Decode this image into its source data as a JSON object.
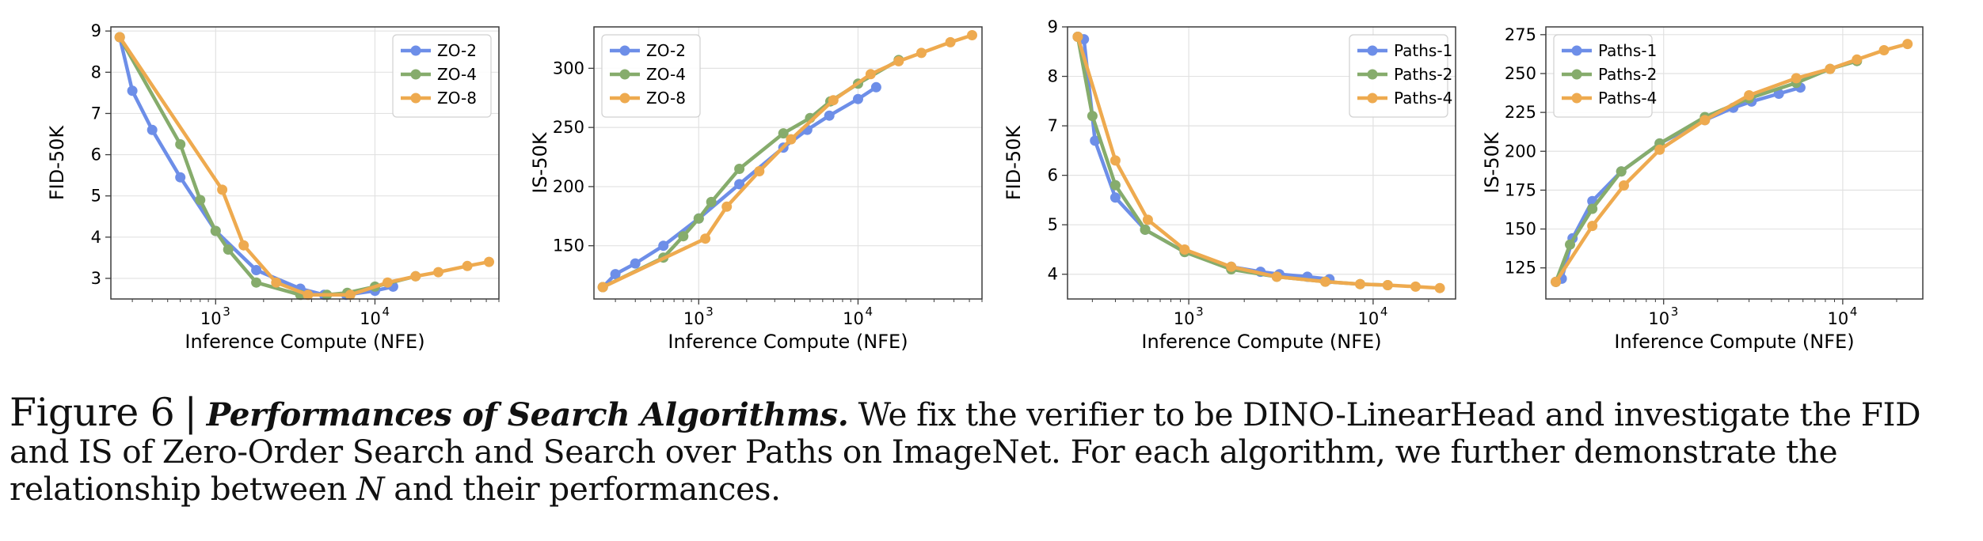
{
  "colors": {
    "series_1": "#6d8ee8",
    "series_2": "#86ac6c",
    "series_3": "#eeaa4f",
    "grid": "#e2e2e2",
    "axis": "#3c3c3c"
  },
  "chart_data": [
    {
      "type": "line",
      "xlabel": "Inference Compute (NFE)",
      "ylabel": "FID-50K",
      "xscale": "log",
      "xlim": [
        220,
        60000
      ],
      "ylim": [
        2.5,
        9.1
      ],
      "yticks": [
        3,
        4,
        5,
        6,
        7,
        8,
        9
      ],
      "xticks": [
        {
          "value": 1000,
          "base": "10",
          "exp": "3"
        },
        {
          "value": 10000,
          "base": "10",
          "exp": "4"
        }
      ],
      "grid": true,
      "legend_position": "top-right",
      "series": [
        {
          "name": "ZO-2",
          "x": [
            250,
            300,
            400,
            600,
            1000,
            1800,
            3400,
            4800,
            6600,
            10000,
            13000
          ],
          "y": [
            8.85,
            7.55,
            6.6,
            5.45,
            4.15,
            3.2,
            2.75,
            2.6,
            2.6,
            2.7,
            2.8
          ]
        },
        {
          "name": "ZO-4",
          "x": [
            250,
            600,
            800,
            1000,
            1200,
            1800,
            3400,
            5000,
            6700,
            10000,
            18000
          ],
          "y": [
            8.85,
            6.25,
            4.9,
            4.15,
            3.7,
            2.9,
            2.6,
            2.6,
            2.65,
            2.8,
            3.05
          ]
        },
        {
          "name": "ZO-8",
          "x": [
            250,
            1100,
            1500,
            2400,
            3800,
            7000,
            12000,
            18000,
            25000,
            38000,
            52000
          ],
          "y": [
            8.85,
            5.15,
            3.8,
            2.9,
            2.6,
            2.6,
            2.9,
            3.05,
            3.15,
            3.3,
            3.4
          ]
        }
      ]
    },
    {
      "type": "line",
      "xlabel": "Inference Compute (NFE)",
      "ylabel": "IS-50K",
      "xscale": "log",
      "xlim": [
        220,
        60000
      ],
      "ylim": [
        105,
        335
      ],
      "yticks": [
        150,
        200,
        250,
        300
      ],
      "xticks": [
        {
          "value": 1000,
          "base": "10",
          "exp": "3"
        },
        {
          "value": 10000,
          "base": "10",
          "exp": "4"
        }
      ],
      "grid": true,
      "legend_position": "top-left",
      "series": [
        {
          "name": "ZO-2",
          "x": [
            250,
            300,
            400,
            600,
            1000,
            1800,
            3400,
            4800,
            6600,
            10000,
            13000
          ],
          "y": [
            115,
            126,
            135,
            150,
            173,
            202,
            233,
            248,
            260,
            274,
            284
          ]
        },
        {
          "name": "ZO-4",
          "x": [
            250,
            600,
            800,
            1000,
            1200,
            1800,
            3400,
            5000,
            6700,
            10000,
            18000
          ],
          "y": [
            115,
            140,
            158,
            173,
            187,
            215,
            245,
            258,
            272,
            287,
            307
          ]
        },
        {
          "name": "ZO-8",
          "x": [
            250,
            1100,
            1500,
            2400,
            3800,
            7000,
            12000,
            18000,
            25000,
            38000,
            52000
          ],
          "y": [
            115,
            156,
            183,
            213,
            240,
            273,
            295,
            306,
            313,
            322,
            328
          ]
        }
      ]
    },
    {
      "type": "line",
      "xlabel": "Inference Compute (NFE)",
      "ylabel": "FID-50K",
      "xscale": "log",
      "xlim": [
        220,
        28000
      ],
      "ylim": [
        3.5,
        9.0
      ],
      "yticks": [
        4,
        5,
        6,
        7,
        8,
        9
      ],
      "xticks": [
        {
          "value": 1000,
          "base": "10",
          "exp": "3"
        },
        {
          "value": 10000,
          "base": "10",
          "exp": "4"
        }
      ],
      "grid": true,
      "legend_position": "top-right",
      "series": [
        {
          "name": "Paths-1",
          "x": [
            250,
            270,
            310,
            400,
            580,
            950,
            1700,
            2450,
            3100,
            4400,
            5800
          ],
          "y": [
            8.8,
            8.75,
            6.7,
            5.55,
            4.9,
            4.45,
            4.15,
            4.05,
            4.0,
            3.95,
            3.9
          ]
        },
        {
          "name": "Paths-2",
          "x": [
            250,
            300,
            400,
            580,
            950,
            1700,
            3000,
            5500,
            8500,
            12000
          ],
          "y": [
            8.8,
            7.2,
            5.8,
            4.9,
            4.45,
            4.1,
            3.95,
            3.85,
            3.8,
            3.78
          ]
        },
        {
          "name": "Paths-4",
          "x": [
            250,
            400,
            600,
            950,
            1700,
            3000,
            5500,
            8500,
            12000,
            17000,
            23000
          ],
          "y": [
            8.8,
            6.3,
            5.1,
            4.5,
            4.15,
            3.95,
            3.85,
            3.8,
            3.78,
            3.75,
            3.72
          ]
        }
      ]
    },
    {
      "type": "line",
      "xlabel": "Inference Compute (NFE)",
      "ylabel": "IS-50K",
      "xscale": "log",
      "xlim": [
        220,
        28000
      ],
      "ylim": [
        105,
        280
      ],
      "yticks": [
        125,
        150,
        175,
        200,
        225,
        250,
        275
      ],
      "xticks": [
        {
          "value": 1000,
          "base": "10",
          "exp": "3"
        },
        {
          "value": 10000,
          "base": "10",
          "exp": "4"
        }
      ],
      "grid": true,
      "legend_position": "top-left",
      "series": [
        {
          "name": "Paths-1",
          "x": [
            250,
            270,
            310,
            400,
            580,
            950,
            1700,
            2450,
            3100,
            4400,
            5800
          ],
          "y": [
            116,
            118,
            144,
            168,
            187,
            205,
            220,
            228,
            232,
            237,
            241
          ]
        },
        {
          "name": "Paths-2",
          "x": [
            250,
            300,
            400,
            580,
            950,
            1700,
            3000,
            5500,
            8500,
            12000
          ],
          "y": [
            116,
            140,
            163,
            187,
            205,
            222,
            234,
            244,
            253,
            258
          ]
        },
        {
          "name": "Paths-4",
          "x": [
            250,
            400,
            600,
            950,
            1700,
            3000,
            5500,
            8500,
            12000,
            17000,
            23000
          ],
          "y": [
            116,
            152,
            178,
            201,
            220,
            236,
            247,
            253,
            259,
            265,
            269
          ]
        }
      ]
    }
  ],
  "caption": {
    "figure_number": "Figure 6",
    "separator": "|",
    "title": "Performances of Search Algorithms.",
    "text": "We fix the verifier to be DINO-LinearHead and investigate the FID and IS of Zero-Order Search and Search over Paths on ImageNet. For each algorithm, we further demonstrate the relationship between",
    "variable": "N",
    "text_end": "and their performances."
  }
}
